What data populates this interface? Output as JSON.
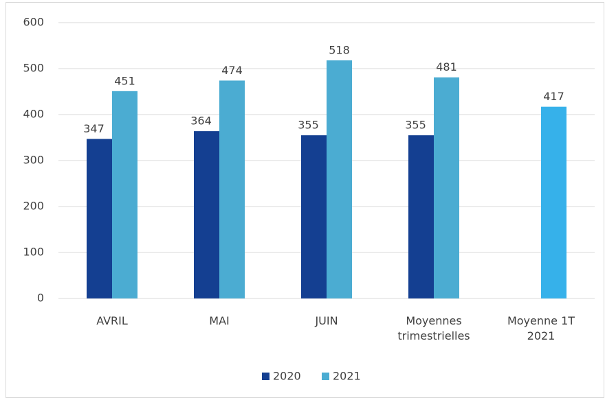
{
  "chart_data": {
    "type": "bar",
    "categories": [
      "AVRIL",
      "MAI",
      "JUIN",
      "Moyennes\ntrimestrielles",
      "Moyenne 1T\n2021"
    ],
    "series": [
      {
        "name": "2020",
        "color": "#143f91",
        "values": [
          347,
          364,
          355,
          355,
          null
        ]
      },
      {
        "name": "2021",
        "color": "#4bacd2",
        "colors": [
          "#4bacd2",
          "#4bacd2",
          "#4bacd2",
          "#4bacd2",
          "#36b1ea"
        ],
        "values": [
          451,
          474,
          518,
          481,
          417
        ]
      }
    ],
    "ylim": [
      0,
      600
    ],
    "yticks": [
      0,
      100,
      200,
      300,
      400,
      500,
      600
    ],
    "grid": true,
    "legend": "bottom",
    "data_labels": true
  }
}
